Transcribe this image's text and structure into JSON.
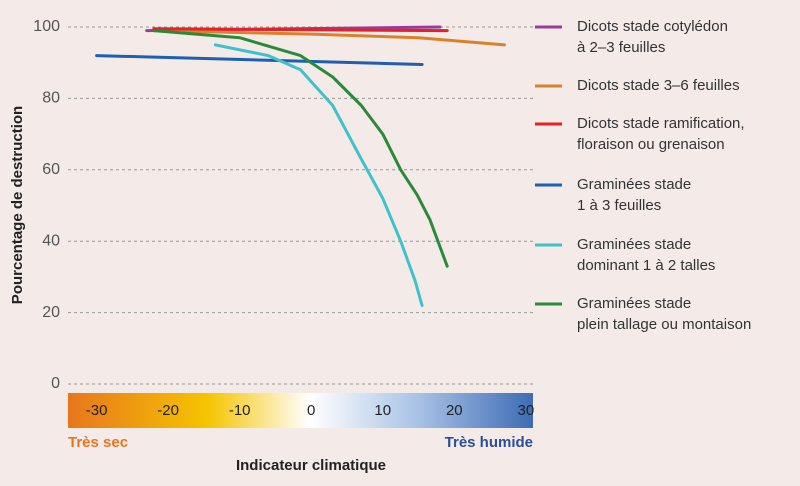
{
  "chart_data": {
    "type": "line",
    "y_label": "Pourcentage de destruction",
    "x_label": "Indicateur climatique",
    "x_left_label": "Très sec",
    "x_right_label": "Très humide",
    "xlim": [
      -34,
      31
    ],
    "xticks": [
      -30,
      -20,
      -10,
      0,
      10,
      20,
      30
    ],
    "ylim": [
      0,
      100
    ],
    "yticks": [
      0,
      20,
      40,
      60,
      80,
      100
    ],
    "grid": true,
    "series": [
      {
        "name": "Dicots stade cotylédon\nà 2–3 feuilles",
        "color": "#9b3a9b",
        "x": [
          -23,
          18
        ],
        "values": [
          99,
          100
        ]
      },
      {
        "name": "Dicots stade 3–6 feuilles",
        "color": "#d9822b",
        "x": [
          -22,
          0,
          15,
          27
        ],
        "values": [
          99,
          98,
          97,
          95
        ]
      },
      {
        "name": "Dicots stade ramification,\nfloraison ou grenaison",
        "color": "#e32128",
        "x": [
          -22,
          19
        ],
        "values": [
          99.5,
          99
        ]
      },
      {
        "name": "Graminées stade\n1 à 3 feuilles",
        "color": "#1f5fb0",
        "x": [
          -30,
          15.5
        ],
        "values": [
          92,
          89.5
        ]
      },
      {
        "name": "Graminées stade\ndominant 1 à 2 talles",
        "color": "#3fc1cc",
        "x": [
          -13.4,
          -6,
          -1.5,
          3,
          7,
          10,
          12.5,
          14.5,
          15.5
        ],
        "values": [
          95,
          92,
          88,
          78,
          63,
          52,
          40,
          29,
          22
        ]
      },
      {
        "name": "Graminées stade\nplein tallage ou montaison",
        "color": "#2a8a3a",
        "x": [
          -22,
          -10,
          -1.5,
          3,
          7,
          10,
          12.5,
          14.8,
          16.6,
          19
        ],
        "values": [
          99,
          97,
          92,
          86,
          78,
          70,
          60,
          53,
          46,
          33
        ]
      }
    ]
  }
}
